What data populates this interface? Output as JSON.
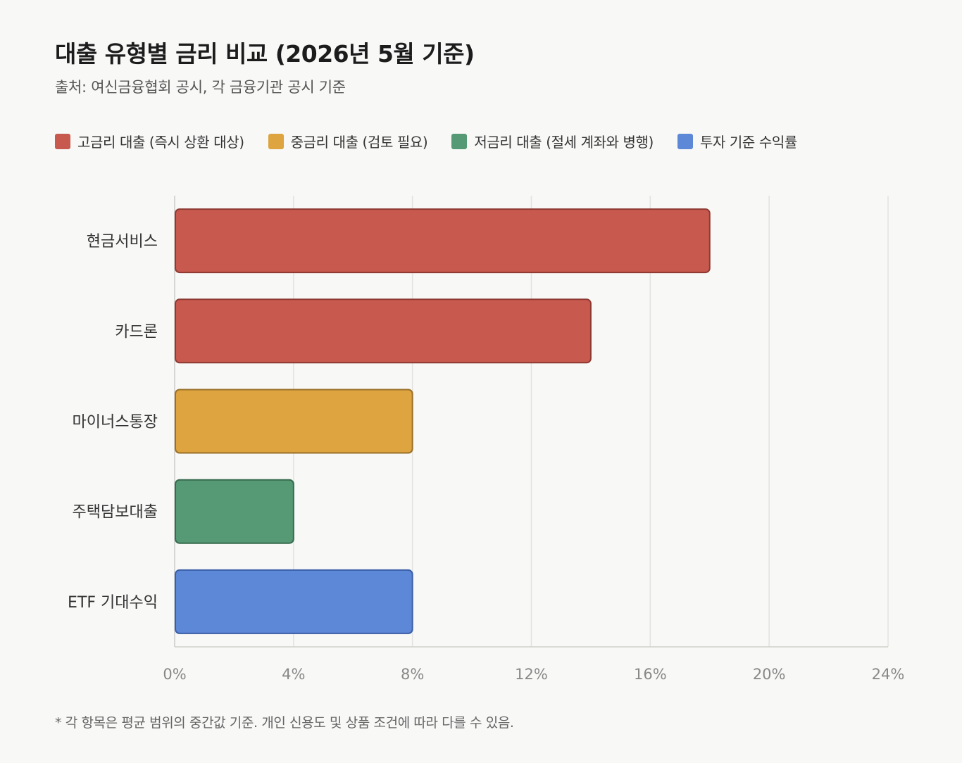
{
  "title": "대출 유형별 금리 비교 (2026년 5월 기준)",
  "subtitle": "출처: 여신금융협회 공시, 각 금융기관 공시 기준",
  "legend": [
    {
      "label": "고금리 대출 (즉시 상환 대상)",
      "color": "#c8594e"
    },
    {
      "label": "중금리 대출 (검토 필요)",
      "color": "#dda43f"
    },
    {
      "label": "저금리 대출 (절세 계좌와 병행)",
      "color": "#559a74"
    },
    {
      "label": "투자 기준 수익률",
      "color": "#5d88d8"
    }
  ],
  "chart_data": {
    "type": "bar",
    "orientation": "horizontal",
    "categories": [
      "현금서비스",
      "카드론",
      "마이너스통장",
      "주택담보대출",
      "ETF 기대수익"
    ],
    "values": [
      18,
      14,
      8,
      4,
      8
    ],
    "series_index": [
      0,
      0,
      1,
      2,
      3
    ],
    "xlim": [
      0,
      24
    ],
    "xticks": [
      0,
      4,
      8,
      12,
      16,
      20,
      24
    ],
    "tick_suffix": "%",
    "grid": true,
    "legend_position": "top"
  },
  "footnote": "* 각 항목은 평균 범위의 중간값 기준. 개인 신용도 및 상품 조건에 따라 다를 수 있음."
}
